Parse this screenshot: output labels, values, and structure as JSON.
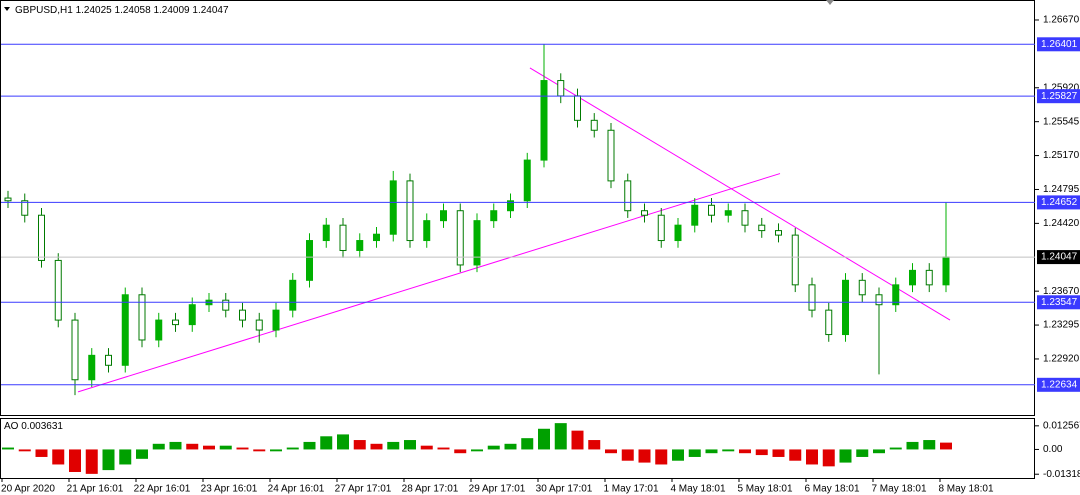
{
  "chart_data": [
    {
      "type": "candlestick",
      "symbol": "GBPUSD,H1",
      "quote": [
        1.24025,
        1.24058,
        1.24009,
        1.24047
      ],
      "open": [
        1.247,
        1.2467,
        1.2451,
        1.2401,
        1.2335,
        1.2269,
        1.2296,
        1.2285,
        1.2363,
        1.2313,
        1.2335,
        1.233,
        1.2352,
        1.2357,
        1.2346,
        1.2335,
        1.2324,
        1.2346,
        1.2379,
        1.2423,
        1.244,
        1.2412,
        1.2423,
        1.243,
        1.2489,
        1.2423,
        1.2445,
        1.2456,
        1.2396,
        1.2445,
        1.2456,
        1.2467,
        1.2512,
        1.26,
        1.2583,
        1.2556,
        1.2545,
        1.2489,
        1.2456,
        1.2451,
        1.2423,
        1.244,
        1.2462,
        1.2451,
        1.2456,
        1.244,
        1.2434,
        1.2429,
        1.2374,
        1.2346,
        1.2319,
        1.2379,
        1.2363,
        1.2352,
        1.2374,
        1.239,
        1.2374
      ],
      "high": [
        1.2478,
        1.2475,
        1.2459,
        1.2409,
        1.2343,
        1.2304,
        1.2304,
        1.2371,
        1.2371,
        1.2343,
        1.2343,
        1.236,
        1.2365,
        1.2365,
        1.2354,
        1.2343,
        1.2354,
        1.2387,
        1.2431,
        1.2448,
        1.2448,
        1.2431,
        1.2438,
        1.25,
        1.2497,
        1.2453,
        1.2464,
        1.2464,
        1.2453,
        1.2464,
        1.2475,
        1.252,
        1.264,
        1.2608,
        1.2591,
        1.2564,
        1.2553,
        1.2497,
        1.2464,
        1.2459,
        1.2448,
        1.247,
        1.247,
        1.2464,
        1.2464,
        1.2448,
        1.2442,
        1.2437,
        1.2382,
        1.2354,
        1.2387,
        1.2387,
        1.2371,
        1.2382,
        1.2398,
        1.2398,
        1.2465
      ],
      "low": [
        1.2459,
        1.2443,
        1.2393,
        1.2327,
        1.2252,
        1.2261,
        1.2277,
        1.2277,
        1.2305,
        1.2305,
        1.2322,
        1.2322,
        1.2344,
        1.2338,
        1.2327,
        1.231,
        1.2316,
        1.2338,
        1.2371,
        1.2415,
        1.2404,
        1.2404,
        1.2415,
        1.2422,
        1.2415,
        1.2415,
        1.2437,
        1.2388,
        1.2388,
        1.2437,
        1.2448,
        1.2459,
        1.2504,
        1.2575,
        1.2548,
        1.2537,
        1.2481,
        1.2448,
        1.2443,
        1.2415,
        1.2415,
        1.2432,
        1.2443,
        1.2443,
        1.2432,
        1.2426,
        1.2421,
        1.2366,
        1.2338,
        1.2311,
        1.2311,
        1.2355,
        1.2275,
        1.2344,
        1.2366,
        1.2366,
        1.2366
      ],
      "close": [
        1.2467,
        1.2451,
        1.2401,
        1.2335,
        1.2269,
        1.2296,
        1.2285,
        1.2363,
        1.2313,
        1.2335,
        1.233,
        1.2352,
        1.2357,
        1.2346,
        1.2335,
        1.2324,
        1.2346,
        1.2379,
        1.2423,
        1.244,
        1.2412,
        1.2423,
        1.243,
        1.2489,
        1.2423,
        1.2445,
        1.2456,
        1.2396,
        1.2445,
        1.2456,
        1.2467,
        1.2512,
        1.26,
        1.2583,
        1.2556,
        1.2545,
        1.2489,
        1.2456,
        1.2451,
        1.2423,
        1.244,
        1.2462,
        1.2451,
        1.2456,
        1.244,
        1.2434,
        1.2429,
        1.2374,
        1.2346,
        1.2319,
        1.2379,
        1.2363,
        1.2352,
        1.2374,
        1.239,
        1.2374,
        1.24047
      ],
      "up_color": "#00b000",
      "down_color": "#007a00",
      "ylim": [
        1.223,
        1.2688
      ],
      "yticks": [
        {
          "value": 1.2667,
          "label": "1.26670"
        },
        {
          "value": 1.2592,
          "label": "1.25920"
        },
        1.25545,
        {
          "value": 1.2517,
          "label": "1.25170"
        },
        1.24795,
        {
          "value": 1.2442,
          "label": "1.24420"
        },
        {
          "value": 1.2367,
          "label": "1.23670"
        },
        1.23295,
        {
          "value": 1.2292,
          "label": "1.22920"
        }
      ],
      "levels": [
        1.26401,
        1.25827,
        1.24652,
        1.23547,
        1.22634
      ],
      "level_color": "#3a3aff",
      "current_price": 1.24047,
      "trendlines": [
        {
          "from": [
            4.18,
            1.22556
          ],
          "to": [
            46.09,
            1.24971
          ]
        },
        {
          "from": [
            31.16,
            1.2614
          ],
          "to": [
            56.24,
            1.2335
          ]
        }
      ],
      "trend_color": "#ff00ff",
      "x_labels": [
        "20 Apr 2020",
        "21 Apr 16:01",
        "22 Apr 16:01",
        "23 Apr 16:01",
        "24 Apr 16:01",
        "27 Apr 17:01",
        "28 Apr 17:01",
        "29 Apr 17:01",
        "30 Apr 17:01",
        "1 May 17:01",
        "4 May 18:01",
        "5 May 18:01",
        "6 May 18:01",
        "7 May 18:01",
        "8 May 18:01"
      ]
    },
    {
      "type": "bar",
      "title": "AO",
      "value": 0.003631,
      "values": [
        0.001,
        -0.001,
        -0.004,
        -0.008,
        -0.012,
        -0.013,
        -0.011,
        -0.008,
        -0.005,
        0.003,
        0.004,
        0.003,
        0.002,
        0.002,
        0.001,
        -0.001,
        -0.001,
        0.001,
        0.004,
        0.007,
        0.008,
        0.005,
        0.003,
        0.004,
        0.005,
        0.002,
        0.001,
        -0.002,
        -0.001,
        0.002,
        0.003,
        0.006,
        0.011,
        0.014,
        0.01,
        0.005,
        -0.002,
        -0.006,
        -0.007,
        -0.008,
        -0.006,
        -0.004,
        -0.002,
        -0.001,
        -0.002,
        -0.003,
        -0.004,
        -0.006,
        -0.008,
        -0.009,
        -0.007,
        -0.004,
        -0.002,
        0.001,
        0.004,
        0.005,
        0.003631
      ],
      "up_color": "#00a000",
      "down_color": "#e00000",
      "ylim": [
        -0.0152,
        0.0162
      ],
      "yticks": [
        0.012567,
        {
          "value": 0,
          "label": "0.00"
        },
        -0.013187
      ]
    }
  ]
}
